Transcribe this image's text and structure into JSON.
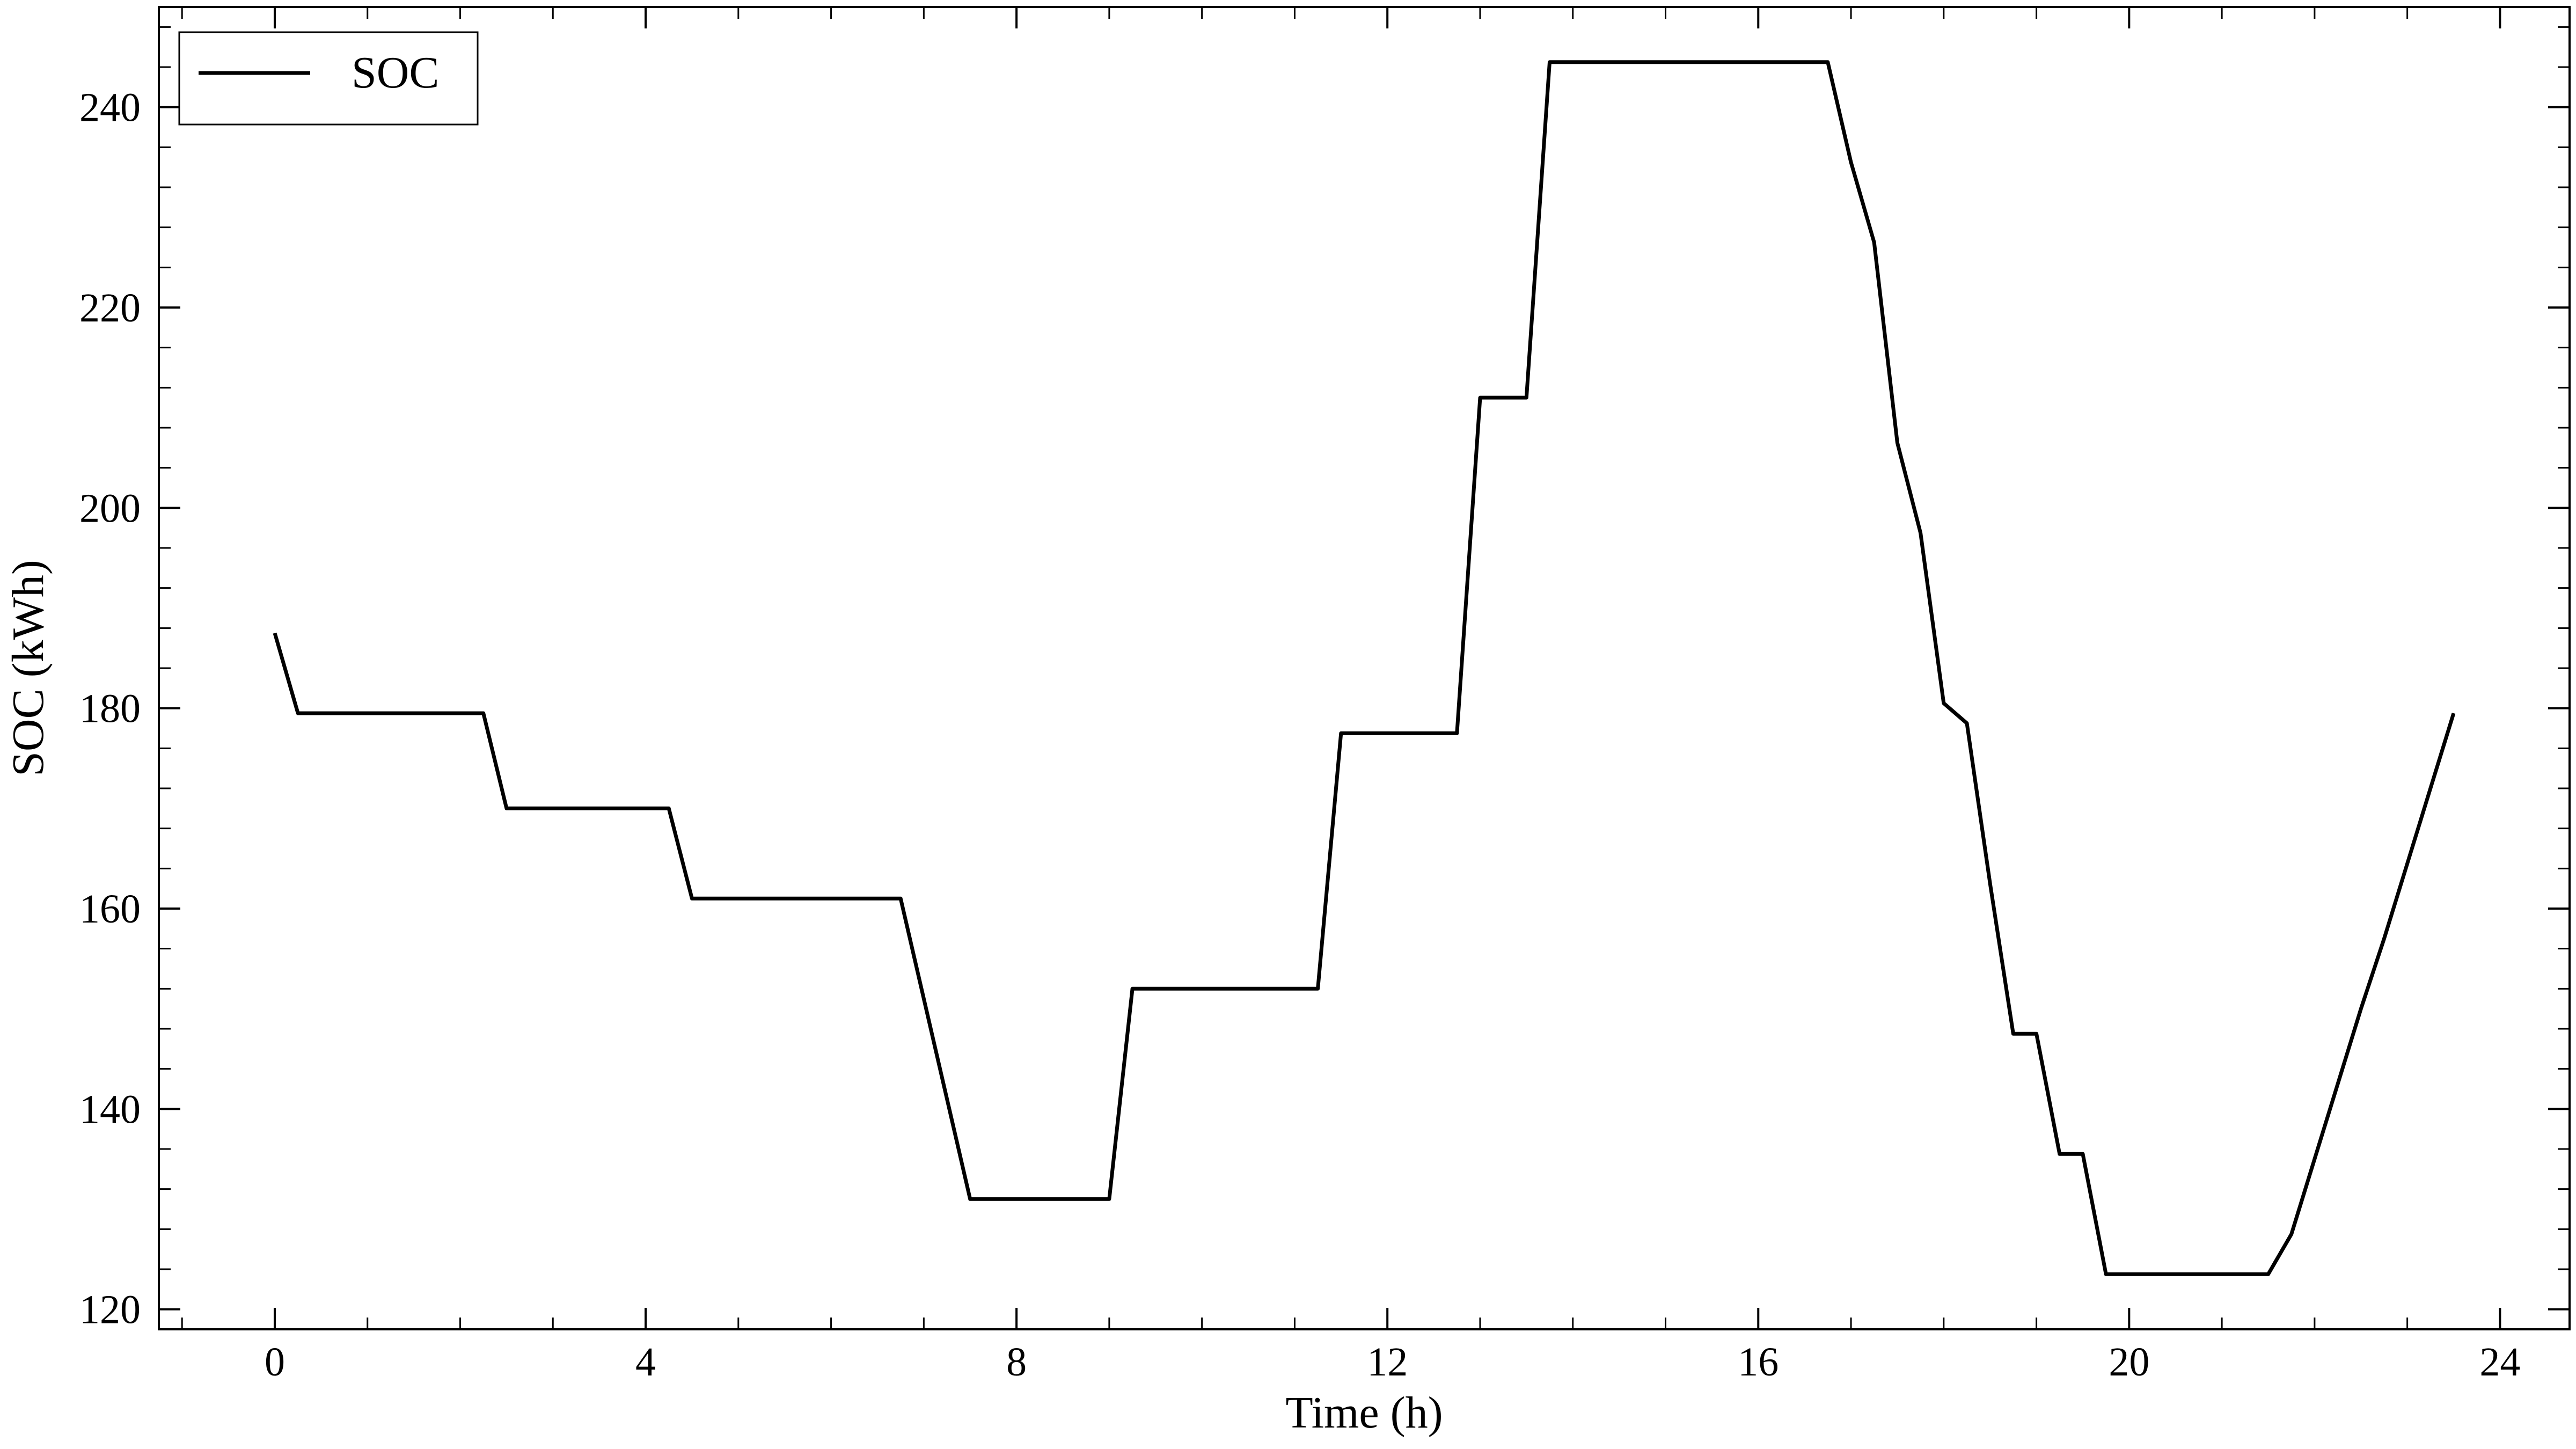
{
  "chart_data": {
    "type": "line",
    "title": "",
    "xlabel": "Time (h)",
    "ylabel": "SOC (kWh)",
    "xlim": [
      -1.25,
      24.75
    ],
    "ylim": [
      118,
      250
    ],
    "xticks": [
      0,
      4,
      8,
      12,
      16,
      20,
      24
    ],
    "yticks": [
      120,
      140,
      160,
      180,
      200,
      220,
      240
    ],
    "x_minor_step": 1,
    "y_minor_step": 4,
    "grid": false,
    "legend_position": "top-left",
    "series": [
      {
        "name": "SOC",
        "color": "#000000",
        "x": [
          0,
          0.25,
          2.25,
          2.5,
          4.25,
          4.5,
          6.75,
          7.5,
          9.0,
          9.25,
          11.25,
          11.5,
          12.75,
          13.0,
          13.5,
          13.75,
          16.75,
          17.0,
          17.25,
          17.5,
          17.75,
          18.0,
          18.25,
          18.5,
          18.75,
          19.0,
          19.25,
          19.5,
          19.75,
          21.5,
          21.75,
          22.0,
          22.25,
          22.5,
          22.75,
          23.0,
          23.25,
          23.5
        ],
        "y": [
          187.5,
          179.5,
          179.5,
          170.0,
          170.0,
          161.0,
          161.0,
          131.0,
          131.0,
          152.0,
          152.0,
          177.5,
          177.5,
          211.0,
          211.0,
          244.5,
          244.5,
          234.5,
          226.5,
          206.5,
          197.5,
          180.5,
          178.5,
          162.5,
          147.5,
          147.5,
          135.5,
          135.5,
          123.5,
          123.5,
          127.5,
          135.0,
          142.5,
          150.0,
          157.0,
          164.5,
          172.0,
          179.5
        ]
      }
    ]
  }
}
